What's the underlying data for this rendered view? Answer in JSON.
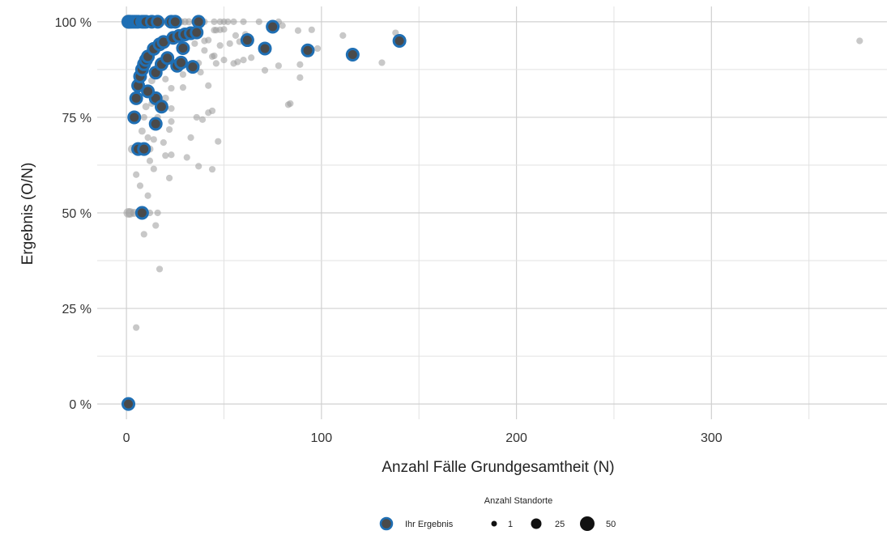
{
  "chart_data": {
    "type": "scatter",
    "xlabel": "Anzahl Fälle Grundgesamtheit (N)",
    "ylabel": "Ergebnis (O/N)",
    "xlim": [
      -15,
      390
    ],
    "ylim": [
      -4,
      104
    ],
    "x_ticks": [
      0,
      100,
      200,
      300
    ],
    "x_tick_labels": [
      "0",
      "100",
      "200",
      "300"
    ],
    "y_ticks": [
      0,
      25,
      50,
      75,
      100
    ],
    "y_tick_labels": [
      "0 %",
      "25 %",
      "50 %",
      "75 %",
      "100 %"
    ],
    "grid": true,
    "legend": {
      "title": "Anzahl Standorte",
      "placement": "bottom",
      "highlight_label": "Ihr Ergebnis",
      "size_labels": [
        "1",
        "25",
        "50"
      ]
    },
    "colors": {
      "highlight_ring": "#1f6fb4",
      "highlight_fill": "#4a4a4a",
      "background_points": "#9a9a9a",
      "grid": "#d9d9d9"
    },
    "series": [
      {
        "name": "Ihr Ergebnis",
        "points": [
          {
            "x": 1,
            "y": 100
          },
          {
            "x": 2,
            "y": 100
          },
          {
            "x": 3,
            "y": 100
          },
          {
            "x": 4,
            "y": 100
          },
          {
            "x": 5,
            "y": 100
          },
          {
            "x": 6,
            "y": 100
          },
          {
            "x": 8,
            "y": 100
          },
          {
            "x": 9,
            "y": 100
          },
          {
            "x": 10,
            "y": 100
          },
          {
            "x": 13,
            "y": 100
          },
          {
            "x": 16,
            "y": 100
          },
          {
            "x": 23,
            "y": 100
          },
          {
            "x": 25,
            "y": 100
          },
          {
            "x": 37,
            "y": 100
          },
          {
            "x": 1,
            "y": 0
          },
          {
            "x": 8,
            "y": 50
          },
          {
            "x": 6,
            "y": 66.7
          },
          {
            "x": 9,
            "y": 66.7
          },
          {
            "x": 4,
            "y": 75
          },
          {
            "x": 15,
            "y": 73.3
          },
          {
            "x": 5,
            "y": 80
          },
          {
            "x": 15,
            "y": 80
          },
          {
            "x": 18,
            "y": 77.8
          },
          {
            "x": 11,
            "y": 81.8
          },
          {
            "x": 6,
            "y": 83.3
          },
          {
            "x": 7,
            "y": 85.7
          },
          {
            "x": 8,
            "y": 87.5
          },
          {
            "x": 9,
            "y": 88.9
          },
          {
            "x": 10,
            "y": 90
          },
          {
            "x": 11,
            "y": 90.9
          },
          {
            "x": 14,
            "y": 92.9
          },
          {
            "x": 15,
            "y": 86.7
          },
          {
            "x": 17,
            "y": 94.1
          },
          {
            "x": 18,
            "y": 88.9
          },
          {
            "x": 19,
            "y": 94.7
          },
          {
            "x": 21,
            "y": 90.5
          },
          {
            "x": 24,
            "y": 95.8
          },
          {
            "x": 26,
            "y": 88.5
          },
          {
            "x": 27,
            "y": 96.3
          },
          {
            "x": 28,
            "y": 89.3
          },
          {
            "x": 29,
            "y": 93.1
          },
          {
            "x": 30,
            "y": 96.7
          },
          {
            "x": 33,
            "y": 97
          },
          {
            "x": 34,
            "y": 88.2
          },
          {
            "x": 36,
            "y": 97.2
          },
          {
            "x": 62,
            "y": 95.2
          },
          {
            "x": 71,
            "y": 93
          },
          {
            "x": 75,
            "y": 98.7
          },
          {
            "x": 93,
            "y": 92.5
          },
          {
            "x": 116,
            "y": 91.4
          },
          {
            "x": 140,
            "y": 95
          }
        ]
      },
      {
        "name": "",
        "points": [
          {
            "x": 1,
            "y": 100,
            "n": 40
          },
          {
            "x": 2,
            "y": 100,
            "n": 35
          },
          {
            "x": 3,
            "y": 100,
            "n": 30
          },
          {
            "x": 4,
            "y": 100,
            "n": 25
          },
          {
            "x": 5,
            "y": 100,
            "n": 20
          },
          {
            "x": 7,
            "y": 100,
            "n": 12
          },
          {
            "x": 11,
            "y": 100,
            "n": 6
          },
          {
            "x": 14,
            "y": 100,
            "n": 5
          },
          {
            "x": 18,
            "y": 100,
            "n": 4
          },
          {
            "x": 20,
            "y": 100,
            "n": 3
          },
          {
            "x": 28,
            "y": 100,
            "n": 2
          },
          {
            "x": 30,
            "y": 100,
            "n": 2
          },
          {
            "x": 32,
            "y": 100,
            "n": 2
          },
          {
            "x": 35,
            "y": 100,
            "n": 2
          },
          {
            "x": 40,
            "y": 100,
            "n": 1
          },
          {
            "x": 45,
            "y": 100,
            "n": 1
          },
          {
            "x": 48,
            "y": 100,
            "n": 1
          },
          {
            "x": 50,
            "y": 100,
            "n": 1
          },
          {
            "x": 52,
            "y": 100,
            "n": 1
          },
          {
            "x": 55,
            "y": 100,
            "n": 1
          },
          {
            "x": 60,
            "y": 100,
            "n": 1
          },
          {
            "x": 68,
            "y": 100,
            "n": 1
          },
          {
            "x": 80,
            "y": 99,
            "n": 1
          },
          {
            "x": 78,
            "y": 100,
            "n": 1
          },
          {
            "x": 1,
            "y": 50,
            "n": 10
          },
          {
            "x": 2,
            "y": 50,
            "n": 8
          },
          {
            "x": 4,
            "y": 50,
            "n": 4
          },
          {
            "x": 12,
            "y": 50,
            "n": 1
          },
          {
            "x": 16,
            "y": 50,
            "n": 1
          },
          {
            "x": 5,
            "y": 20,
            "n": 1
          },
          {
            "x": 17,
            "y": 35.3,
            "n": 1
          },
          {
            "x": 9,
            "y": 44.4,
            "n": 1
          },
          {
            "x": 15,
            "y": 46.7,
            "n": 1
          },
          {
            "x": 11,
            "y": 54.5,
            "n": 1
          },
          {
            "x": 7,
            "y": 57.1,
            "n": 1
          },
          {
            "x": 22,
            "y": 59.1,
            "n": 1
          },
          {
            "x": 5,
            "y": 60,
            "n": 1
          },
          {
            "x": 14,
            "y": 61.5,
            "n": 1
          },
          {
            "x": 37,
            "y": 62.2,
            "n": 1
          },
          {
            "x": 44,
            "y": 61.4,
            "n": 1
          },
          {
            "x": 12,
            "y": 63.6,
            "n": 1
          },
          {
            "x": 20,
            "y": 65,
            "n": 1
          },
          {
            "x": 23,
            "y": 65.2,
            "n": 1
          },
          {
            "x": 31,
            "y": 64.5,
            "n": 1
          },
          {
            "x": 3,
            "y": 66.7,
            "n": 6
          },
          {
            "x": 12,
            "y": 66.7,
            "n": 2
          },
          {
            "x": 47,
            "y": 68.7,
            "n": 1
          },
          {
            "x": 11,
            "y": 69.7,
            "n": 1
          },
          {
            "x": 33,
            "y": 69.7,
            "n": 1
          },
          {
            "x": 14,
            "y": 69.2,
            "n": 1
          },
          {
            "x": 19,
            "y": 68.4,
            "n": 1
          },
          {
            "x": 8,
            "y": 71.4,
            "n": 2
          },
          {
            "x": 22,
            "y": 71.8,
            "n": 1
          },
          {
            "x": 23,
            "y": 73.9,
            "n": 1
          },
          {
            "x": 16,
            "y": 75,
            "n": 1
          },
          {
            "x": 9,
            "y": 75,
            "n": 1
          },
          {
            "x": 36,
            "y": 75,
            "n": 1
          },
          {
            "x": 39,
            "y": 74.4,
            "n": 1
          },
          {
            "x": 42,
            "y": 76.2,
            "n": 1
          },
          {
            "x": 44,
            "y": 76.7,
            "n": 1
          },
          {
            "x": 10,
            "y": 77.8,
            "n": 2
          },
          {
            "x": 23,
            "y": 77.3,
            "n": 1
          },
          {
            "x": 13,
            "y": 78.6,
            "n": 1
          },
          {
            "x": 20,
            "y": 80,
            "n": 2
          },
          {
            "x": 23,
            "y": 82.6,
            "n": 1
          },
          {
            "x": 29,
            "y": 82.8,
            "n": 1
          },
          {
            "x": 42,
            "y": 83.3,
            "n": 1
          },
          {
            "x": 84,
            "y": 78.6,
            "n": 1
          },
          {
            "x": 83,
            "y": 78.3,
            "n": 1
          },
          {
            "x": 89,
            "y": 85.4,
            "n": 1
          },
          {
            "x": 13,
            "y": 84.6,
            "n": 2
          },
          {
            "x": 20,
            "y": 85,
            "n": 1
          },
          {
            "x": 29,
            "y": 86.2,
            "n": 1
          },
          {
            "x": 38,
            "y": 86.8,
            "n": 1
          },
          {
            "x": 17,
            "y": 88.2,
            "n": 1
          },
          {
            "x": 46,
            "y": 89.1,
            "n": 1
          },
          {
            "x": 37,
            "y": 89.2,
            "n": 1
          },
          {
            "x": 55,
            "y": 89.1,
            "n": 1
          },
          {
            "x": 71,
            "y": 87.3,
            "n": 1
          },
          {
            "x": 78,
            "y": 88.5,
            "n": 1
          },
          {
            "x": 131,
            "y": 89.3,
            "n": 1
          },
          {
            "x": 89,
            "y": 88.8,
            "n": 1
          },
          {
            "x": 57,
            "y": 89.5,
            "n": 1
          },
          {
            "x": 50,
            "y": 90,
            "n": 1
          },
          {
            "x": 44,
            "y": 90.9,
            "n": 1
          },
          {
            "x": 45,
            "y": 91.1,
            "n": 1
          },
          {
            "x": 60,
            "y": 90,
            "n": 1
          },
          {
            "x": 64,
            "y": 90.6,
            "n": 1
          },
          {
            "x": 40,
            "y": 92.5,
            "n": 1
          },
          {
            "x": 48,
            "y": 93.8,
            "n": 1
          },
          {
            "x": 53,
            "y": 94.3,
            "n": 1
          },
          {
            "x": 58,
            "y": 94.8,
            "n": 1
          },
          {
            "x": 40,
            "y": 95,
            "n": 1
          },
          {
            "x": 56,
            "y": 96.4,
            "n": 1
          },
          {
            "x": 61,
            "y": 96.7,
            "n": 1
          },
          {
            "x": 35,
            "y": 94.3,
            "n": 1
          },
          {
            "x": 42,
            "y": 95.2,
            "n": 1
          },
          {
            "x": 46,
            "y": 97.8,
            "n": 1
          },
          {
            "x": 45,
            "y": 97.8,
            "n": 1
          },
          {
            "x": 48,
            "y": 97.9,
            "n": 1
          },
          {
            "x": 50,
            "y": 98,
            "n": 1
          },
          {
            "x": 88,
            "y": 97.7,
            "n": 1
          },
          {
            "x": 95,
            "y": 97.9,
            "n": 1
          },
          {
            "x": 111,
            "y": 96.4,
            "n": 1
          },
          {
            "x": 138,
            "y": 97.1,
            "n": 1
          },
          {
            "x": 98,
            "y": 93,
            "n": 1
          },
          {
            "x": 376,
            "y": 95,
            "n": 1
          }
        ]
      }
    ]
  }
}
